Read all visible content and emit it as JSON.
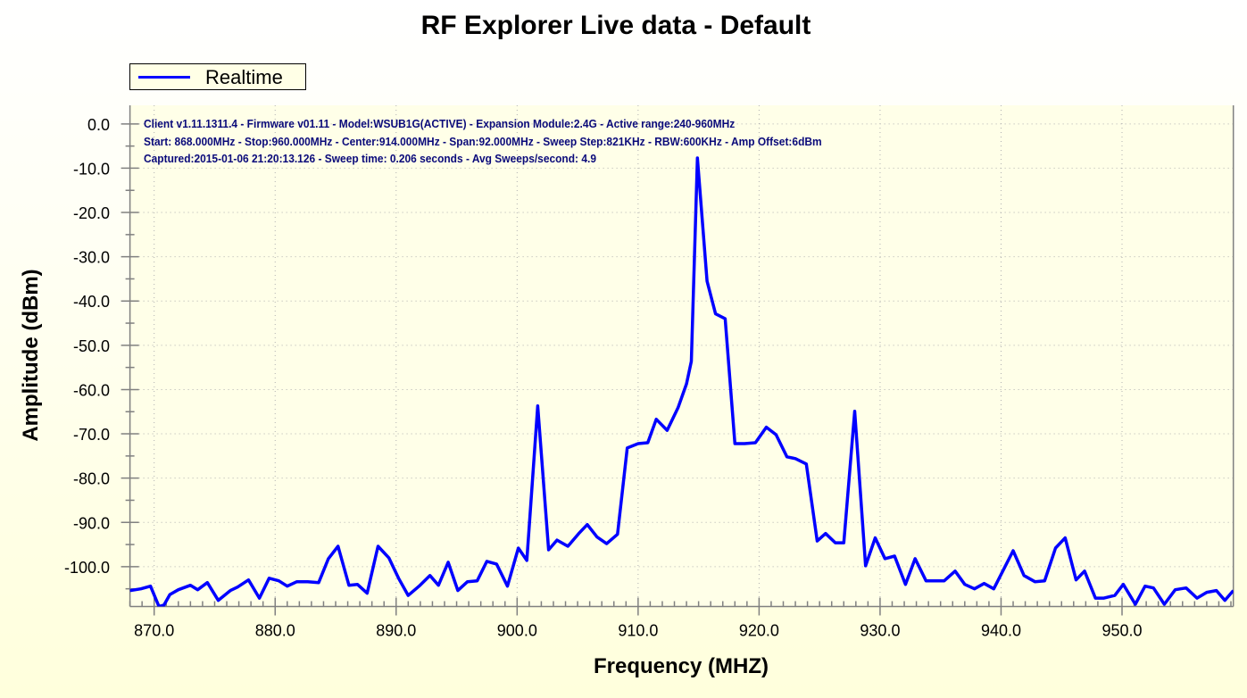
{
  "chart_data": {
    "type": "line",
    "title": "RF Explorer Live data - Default",
    "xlabel": "Frequency (MHZ)",
    "ylabel": "Amplitude (dBm)",
    "xlim": [
      868,
      959.2
    ],
    "ylim": [
      -109,
      4.2
    ],
    "grid": true,
    "legend": {
      "placement": "top-left",
      "entries": [
        "Realtime"
      ]
    },
    "xticks": [
      870,
      880,
      890,
      900,
      910,
      920,
      930,
      940,
      950
    ],
    "xtick_labels": [
      "870.0",
      "880.0",
      "890.0",
      "900.0",
      "910.0",
      "920.0",
      "930.0",
      "940.0",
      "950.0"
    ],
    "yticks": [
      0,
      -10,
      -20,
      -30,
      -40,
      -50,
      -60,
      -70,
      -80,
      -90,
      -100
    ],
    "ytick_labels": [
      "0.0",
      "-10.0",
      "-20.0",
      "-30.0",
      "-40.0",
      "-50.0",
      "-60.0",
      "-70.0",
      "-80.0",
      "-90.0",
      "-100.0"
    ],
    "info_lines": [
      "Client v1.11.1311.4 - Firmware v01.11 - Model:WSUB1G(ACTIVE) - Expansion Module:2.4G - Active range:240-960MHz",
      "Start: 868.000MHz - Stop:960.000MHz - Center:914.000MHz - Span:92.000MHz - Sweep Step:821KHz - RBW:600KHz - Amp Offset:6dBm",
      "Captured:2015-01-06 21:20:13.126 - Sweep time: 0.206 seconds - Avg Sweeps/second: 4.9"
    ],
    "series": [
      {
        "name": "Realtime",
        "color": "#0000ff",
        "x": [
          868.0,
          868.9,
          869.7,
          870.4,
          870.8,
          871.3,
          872.0,
          873.0,
          873.6,
          874.4,
          875.3,
          876.3,
          876.9,
          877.8,
          878.7,
          879.5,
          880.3,
          881.0,
          881.8,
          882.7,
          883.6,
          884.4,
          885.2,
          886.1,
          886.8,
          887.6,
          888.5,
          889.4,
          890.2,
          891.0,
          891.9,
          892.8,
          893.5,
          894.3,
          895.1,
          895.9,
          896.7,
          897.5,
          898.3,
          899.2,
          900.1,
          900.8,
          901.7,
          902.6,
          903.3,
          904.2,
          905.1,
          905.8,
          906.6,
          907.4,
          908.3,
          909.1,
          910.0,
          910.8,
          911.5,
          912.4,
          913.3,
          914.0,
          914.4,
          914.9,
          915.7,
          916.4,
          917.2,
          918.0,
          918.8,
          919.7,
          920.6,
          921.4,
          922.3,
          923.0,
          923.9,
          924.8,
          925.5,
          926.3,
          927.0,
          927.9,
          928.8,
          929.6,
          930.4,
          931.2,
          932.1,
          932.9,
          933.8,
          935.3,
          936.2,
          937.0,
          937.8,
          938.6,
          939.4,
          941.0,
          941.9,
          942.8,
          943.6,
          944.5,
          945.3,
          946.2,
          946.9,
          947.8,
          948.5,
          949.4,
          950.1,
          951.1,
          951.9,
          952.6,
          953.5,
          954.4,
          955.3,
          956.2,
          957.0,
          957.8,
          958.5,
          959.2
        ],
        "values": [
          -105.4,
          -105.0,
          -104.4,
          -109.0,
          -108.7,
          -106.3,
          -105.2,
          -104.2,
          -105.2,
          -103.6,
          -107.6,
          -105.4,
          -104.6,
          -103.0,
          -107.1,
          -102.6,
          -103.2,
          -104.4,
          -103.4,
          -103.4,
          -103.6,
          -98.2,
          -95.4,
          -104.2,
          -104.0,
          -106.0,
          -95.4,
          -98.0,
          -102.6,
          -106.5,
          -104.4,
          -102.0,
          -104.2,
          -99.0,
          -105.4,
          -103.4,
          -103.2,
          -98.8,
          -99.4,
          -104.4,
          -95.8,
          -98.6,
          -63.7,
          -96.2,
          -94.0,
          -95.4,
          -92.5,
          -90.5,
          -93.3,
          -94.8,
          -92.7,
          -73.2,
          -72.2,
          -72.0,
          -66.7,
          -69.2,
          -64.1,
          -58.7,
          -53.6,
          -7.7,
          -35.5,
          -42.9,
          -44.0,
          -72.2,
          -72.2,
          -72.0,
          -68.5,
          -70.2,
          -75.2,
          -75.6,
          -76.8,
          -94.2,
          -92.5,
          -94.6,
          -94.6,
          -64.9,
          -99.8,
          -93.5,
          -98.2,
          -97.6,
          -104.0,
          -98.2,
          -103.2,
          -103.2,
          -101.0,
          -104.0,
          -105.0,
          -103.8,
          -105.0,
          -96.4,
          -102.0,
          -103.4,
          -103.2,
          -95.8,
          -93.5,
          -103.0,
          -101.0,
          -107.1,
          -107.1,
          -106.5,
          -104.0,
          -108.5,
          -104.4,
          -104.8,
          -108.5,
          -105.2,
          -104.8,
          -107.1,
          -105.8,
          -105.4,
          -107.6,
          -105.4
        ]
      }
    ]
  }
}
